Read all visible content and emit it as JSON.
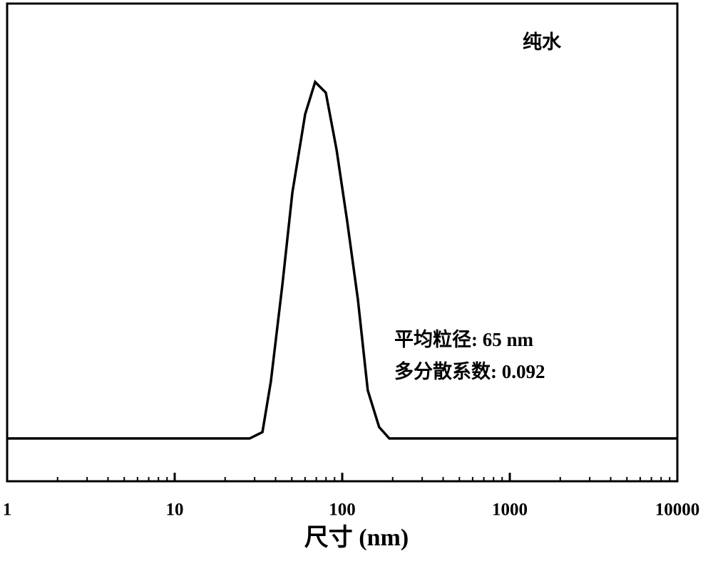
{
  "chart_data": {
    "type": "line",
    "x_scale": "log",
    "x": [
      1,
      28,
      33.4,
      37.5,
      43.9,
      50.4,
      60.1,
      68.9,
      79.8,
      92.5,
      107,
      124,
      142,
      166,
      191,
      10000
    ],
    "series": [
      {
        "color": "#000000",
        "values": [
          0,
          0,
          1.8,
          16,
          43,
          69,
          91,
          100,
          97,
          81,
          61,
          39,
          13.5,
          3.2,
          0,
          0
        ]
      }
    ],
    "xlim": [
      1,
      10000
    ],
    "ylim": [
      -12,
      122
    ],
    "xticks": [
      1,
      10,
      100,
      1000,
      10000
    ],
    "xminorticks": [
      2,
      3,
      4,
      5,
      6,
      7,
      8,
      9,
      20,
      30,
      40,
      50,
      60,
      70,
      80,
      90,
      200,
      300,
      400,
      500,
      600,
      700,
      800,
      900,
      2000,
      3000,
      4000,
      5000,
      6000,
      7000,
      8000,
      9000
    ],
    "xlabel": "尺寸 (nm)",
    "annotations": [
      "纯水",
      "平均粒径: 65 nm",
      "多分散系数: 0.092"
    ]
  }
}
